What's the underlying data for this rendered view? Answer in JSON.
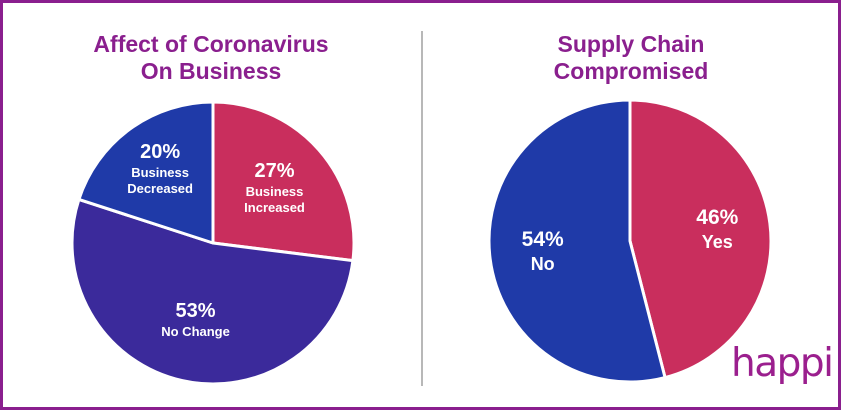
{
  "chart_data": [
    {
      "type": "pie",
      "title": [
        "Affect of Coronavirus",
        "On Business"
      ],
      "unit": "%",
      "slices": [
        {
          "label": [
            "Business",
            "Increased"
          ],
          "value": 27,
          "color": "#c92e5d"
        },
        {
          "label": [
            "No Change"
          ],
          "value": 53,
          "color": "#3b2a9b"
        },
        {
          "label": [
            "Business",
            "Decreased"
          ],
          "value": 20,
          "color": "#1f3aa8"
        }
      ]
    },
    {
      "type": "pie",
      "title": [
        "Supply Chain",
        "Compromised"
      ],
      "unit": "%",
      "slices": [
        {
          "label": [
            "Yes"
          ],
          "value": 46,
          "color": "#c92e5d"
        },
        {
          "label": [
            "No"
          ],
          "value": 54,
          "color": "#1f3aa8"
        }
      ]
    }
  ],
  "brand": {
    "logo_text": "happi",
    "frame_color": "#8a1f8e",
    "title_color": "#8a1f8e"
  }
}
